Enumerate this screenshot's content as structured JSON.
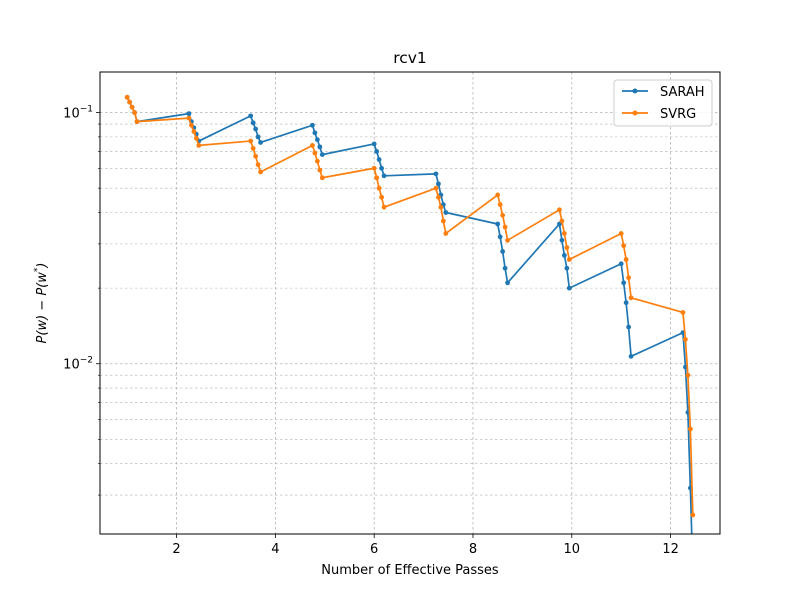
{
  "chart_data": {
    "type": "line",
    "title": "rcv1",
    "xlabel": "Number of Effective Passes",
    "ylabel_parts": [
      "P(w) − P(w",
      "*",
      ")"
    ],
    "yscale": "log",
    "xlim": [
      0.45,
      13.0
    ],
    "ylim": [
      0.0021,
      0.145
    ],
    "grid": true,
    "legend_position": "top-right",
    "x_ticks": [
      2,
      4,
      6,
      8,
      10,
      12
    ],
    "x_tick_labels": [
      "2",
      "4",
      "6",
      "8",
      "10",
      "12"
    ],
    "y_major_ticks": [
      0.01,
      0.1
    ],
    "y_tick_labels": [
      {
        "base": "10",
        "exp": "−2"
      },
      {
        "base": "10",
        "exp": "−1"
      }
    ],
    "y_minor_ticks": [
      0.003,
      0.004,
      0.005,
      0.006,
      0.007,
      0.008,
      0.009,
      0.02,
      0.03,
      0.04,
      0.05,
      0.06,
      0.07,
      0.08,
      0.09
    ],
    "series": [
      {
        "name": "SARAH",
        "color": "#1f77b4",
        "x": [
          1.0,
          1.05,
          1.1,
          1.15,
          1.2,
          2.25,
          2.3,
          2.35,
          2.4,
          2.45,
          3.5,
          3.55,
          3.6,
          3.65,
          3.7,
          4.75,
          4.8,
          4.85,
          4.9,
          4.95,
          6.0,
          6.05,
          6.1,
          6.15,
          6.2,
          7.25,
          7.3,
          7.35,
          7.4,
          7.45,
          8.5,
          8.55,
          8.6,
          8.65,
          8.7,
          9.75,
          9.8,
          9.85,
          9.9,
          9.95,
          11.0,
          11.05,
          11.1,
          11.15,
          11.2,
          12.25,
          12.3,
          12.35,
          12.4,
          12.45
        ],
        "y": [
          0.115,
          0.11,
          0.105,
          0.1,
          0.092,
          0.099,
          0.092,
          0.087,
          0.082,
          0.077,
          0.097,
          0.091,
          0.086,
          0.08,
          0.076,
          0.089,
          0.083,
          0.078,
          0.073,
          0.068,
          0.075,
          0.07,
          0.065,
          0.06,
          0.056,
          0.057,
          0.052,
          0.047,
          0.043,
          0.04,
          0.036,
          0.032,
          0.028,
          0.024,
          0.021,
          0.036,
          0.031,
          0.027,
          0.024,
          0.02,
          0.025,
          0.021,
          0.0175,
          0.014,
          0.0107,
          0.0133,
          0.0097,
          0.0064,
          0.0032,
          0.0015
        ]
      },
      {
        "name": "SVRG",
        "color": "#ff7f0e",
        "x": [
          1.0,
          1.05,
          1.1,
          1.15,
          1.2,
          2.25,
          2.3,
          2.35,
          2.4,
          2.45,
          3.5,
          3.55,
          3.6,
          3.65,
          3.7,
          4.75,
          4.8,
          4.85,
          4.9,
          4.95,
          6.0,
          6.05,
          6.1,
          6.15,
          6.2,
          7.25,
          7.3,
          7.35,
          7.4,
          7.45,
          8.5,
          8.55,
          8.6,
          8.65,
          8.7,
          9.75,
          9.8,
          9.85,
          9.9,
          9.95,
          11.0,
          11.05,
          11.1,
          11.15,
          11.2,
          12.25,
          12.3,
          12.35,
          12.4,
          12.45
        ],
        "y": [
          0.115,
          0.11,
          0.105,
          0.1,
          0.092,
          0.095,
          0.089,
          0.084,
          0.079,
          0.074,
          0.077,
          0.072,
          0.067,
          0.062,
          0.058,
          0.074,
          0.069,
          0.064,
          0.059,
          0.055,
          0.06,
          0.055,
          0.05,
          0.046,
          0.042,
          0.05,
          0.046,
          0.042,
          0.037,
          0.033,
          0.047,
          0.043,
          0.039,
          0.035,
          0.031,
          0.041,
          0.037,
          0.033,
          0.029,
          0.026,
          0.033,
          0.0295,
          0.026,
          0.022,
          0.0183,
          0.016,
          0.0125,
          0.009,
          0.0055,
          0.0025
        ]
      }
    ]
  }
}
